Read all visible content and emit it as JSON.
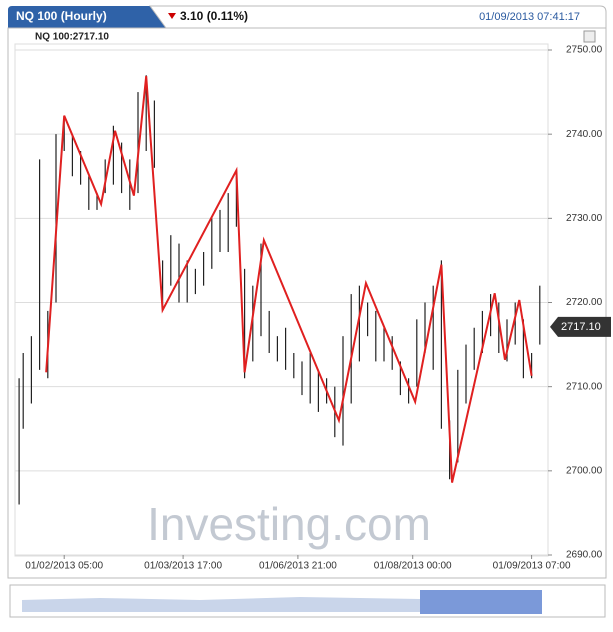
{
  "header": {
    "tab": "NQ 100 (Hourly)",
    "change": "3.10 (0.11%)",
    "timestamp": "01/09/2013 07:41:17"
  },
  "chart_data": {
    "type": "ohlc-zigzag",
    "legend_label": "NQ 100:2717.10",
    "watermark": "Investing.com",
    "last_price": {
      "value": 2717.1,
      "label": "2717.10"
    },
    "xlim": [
      0,
      130
    ],
    "ylim": [
      2690,
      2750
    ],
    "yticks": [
      {
        "value": 2690,
        "label": "2690.00"
      },
      {
        "value": 2700,
        "label": "2700.00"
      },
      {
        "value": 2710,
        "label": "2710.00"
      },
      {
        "value": 2720,
        "label": "2720.00"
      },
      {
        "value": 2730,
        "label": "2730.00"
      },
      {
        "value": 2740,
        "label": "2740.00"
      },
      {
        "value": 2750,
        "label": "2750.00"
      }
    ],
    "xticks": [
      {
        "value": 12,
        "label": "01/02/2013 05:00"
      },
      {
        "value": 41,
        "label": "01/03/2013 17:00"
      },
      {
        "value": 69,
        "label": "01/06/2013 21:00"
      },
      {
        "value": 97,
        "label": "01/08/2013 00:00"
      },
      {
        "value": 126,
        "label": "01/09/2013 07:00"
      }
    ],
    "grid": true,
    "bars": {
      "color": "#222",
      "x": [
        1,
        2,
        4,
        6,
        8,
        10,
        12,
        14,
        16,
        18,
        20,
        22,
        24,
        26,
        28,
        30,
        32,
        34,
        36,
        38,
        40,
        42,
        44,
        46,
        48,
        50,
        52,
        54,
        56,
        58,
        60,
        62,
        64,
        66,
        68,
        70,
        72,
        74,
        76,
        78,
        80,
        82,
        84,
        86,
        88,
        90,
        92,
        94,
        96,
        98,
        100,
        102,
        104,
        106,
        108,
        110,
        112,
        114,
        116,
        118,
        120,
        122,
        124,
        126,
        128
      ],
      "high": [
        2711,
        2714,
        2716,
        2737,
        2719,
        2740,
        2742,
        2740,
        2738,
        2735,
        2733,
        2737,
        2741,
        2739,
        2737,
        2745,
        2747,
        2744,
        2725,
        2728,
        2727,
        2725,
        2724,
        2726,
        2730,
        2731,
        2733,
        2735,
        2724,
        2722,
        2727,
        2719,
        2716,
        2717,
        2714,
        2713,
        2714,
        2712,
        2711,
        2710,
        2716,
        2721,
        2722,
        2720,
        2719,
        2717,
        2716,
        2713,
        2711,
        2718,
        2720,
        2722,
        2725,
        2706,
        2712,
        2715,
        2717,
        2719,
        2721,
        2720,
        2718,
        2720,
        2718,
        2714,
        2722
      ],
      "low": [
        2696,
        2705,
        2708,
        2712,
        2711,
        2720,
        2738,
        2735,
        2734,
        2731,
        2731,
        2733,
        2734,
        2733,
        2731,
        2733,
        2738,
        2736,
        2719,
        2722,
        2720,
        2720,
        2721,
        2722,
        2724,
        2726,
        2726,
        2729,
        2711,
        2713,
        2716,
        2714,
        2713,
        2712,
        2711,
        2709,
        2708,
        2707,
        2708,
        2704,
        2703,
        2708,
        2713,
        2716,
        2713,
        2713,
        2712,
        2709,
        2708,
        2710,
        2714,
        2712,
        2705,
        2699,
        2701,
        2708,
        2712,
        2714,
        2716,
        2714,
        2713,
        2715,
        2711,
        2711,
        2715
      ]
    },
    "zigzag": {
      "color": "#e02020",
      "x": [
        7.6,
        12,
        21,
        24.4,
        29,
        32,
        36,
        54,
        56,
        60.7,
        79,
        85.6,
        97.6,
        104,
        106.6,
        117,
        119.5,
        123,
        126
      ],
      "values": [
        2711.7,
        2742.2,
        2731.7,
        2740.4,
        2732.7,
        2746.9,
        2719.1,
        2735.7,
        2711.7,
        2727.4,
        2706.0,
        2722.3,
        2708.2,
        2724.5,
        2698.6,
        2721.1,
        2713.2,
        2720.3,
        2711.3
      ]
    }
  }
}
